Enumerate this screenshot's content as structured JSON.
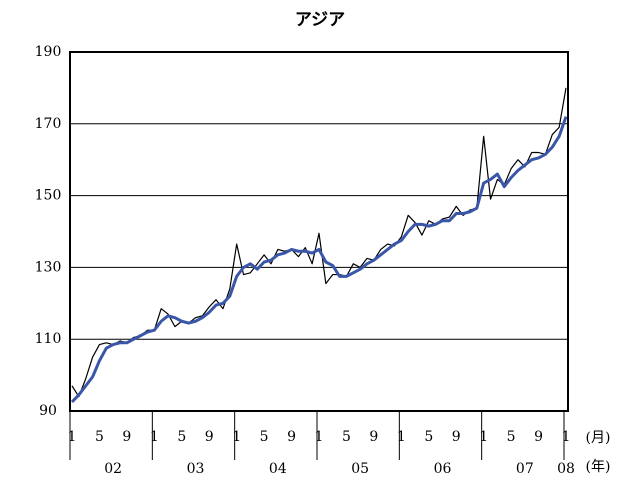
{
  "chart_data": {
    "type": "line",
    "title": "アジア",
    "categories": [
      "1",
      null,
      null,
      null,
      "5",
      null,
      null,
      null,
      "9",
      null,
      null,
      null,
      "1",
      null,
      null,
      null,
      "5",
      null,
      null,
      null,
      "9",
      null,
      null,
      null,
      "1",
      null,
      null,
      null,
      "5",
      null,
      null,
      null,
      "9",
      null,
      null,
      null,
      "1",
      null,
      null,
      null,
      "5",
      null,
      null,
      null,
      "9",
      null,
      null,
      null,
      "1",
      null,
      null,
      null,
      "5",
      null,
      null,
      null,
      "9",
      null,
      null,
      null,
      "1",
      null,
      null,
      null,
      "5",
      null,
      null,
      null,
      "9",
      null,
      null,
      null,
      "1"
    ],
    "year_labels": [
      "02",
      "03",
      "04",
      "05",
      "06",
      "07",
      "08"
    ],
    "month_unit": "(月)",
    "year_unit": "(年)",
    "series": [
      {
        "color": "#000000",
        "width": 1.2,
        "values": [
          97,
          94,
          99,
          105,
          108.5,
          109,
          108.5,
          109.5,
          109,
          110.5,
          111,
          112.5,
          112.5,
          118.5,
          117,
          113.5,
          115,
          114.5,
          116,
          116.5,
          119,
          121,
          118.5,
          124,
          136.5,
          128,
          128.5,
          131,
          133.5,
          131,
          135,
          134.5,
          135,
          133,
          135.5,
          131,
          139.5,
          125.5,
          128,
          128,
          127.5,
          131,
          130,
          132.5,
          132,
          135,
          136.5,
          136,
          138.5,
          144.5,
          142.5,
          139,
          143,
          142,
          143.5,
          144,
          147,
          144.5,
          146,
          146.5,
          166.5,
          149,
          154.5,
          153,
          157.5,
          160,
          158,
          162,
          162,
          161.5,
          167,
          169,
          180
        ]
      },
      {
        "color": "#3a56a8",
        "width": 3,
        "values": [
          92.5,
          94.5,
          97,
          99.5,
          104,
          107.5,
          108.5,
          109,
          109,
          110,
          111,
          112,
          112.5,
          115,
          116.5,
          116,
          115,
          114.5,
          115,
          116,
          117.5,
          119.5,
          120,
          122,
          127.5,
          130,
          131,
          129.5,
          131.5,
          132,
          133.5,
          134,
          135,
          134.5,
          134.5,
          134,
          135,
          131.5,
          130.5,
          127.5,
          127.5,
          128.5,
          129.5,
          131,
          132,
          133.5,
          135,
          136.5,
          137.5,
          140,
          142,
          142,
          141.5,
          142,
          143,
          143,
          145,
          145,
          145.5,
          146.5,
          153.5,
          154.5,
          156,
          152.5,
          155,
          157,
          158.5,
          160,
          160.5,
          161.5,
          163.5,
          166.5,
          172
        ]
      }
    ],
    "ylim": [
      90,
      190
    ],
    "yticks": [
      90,
      110,
      130,
      150,
      170,
      190
    ],
    "grid": true
  }
}
